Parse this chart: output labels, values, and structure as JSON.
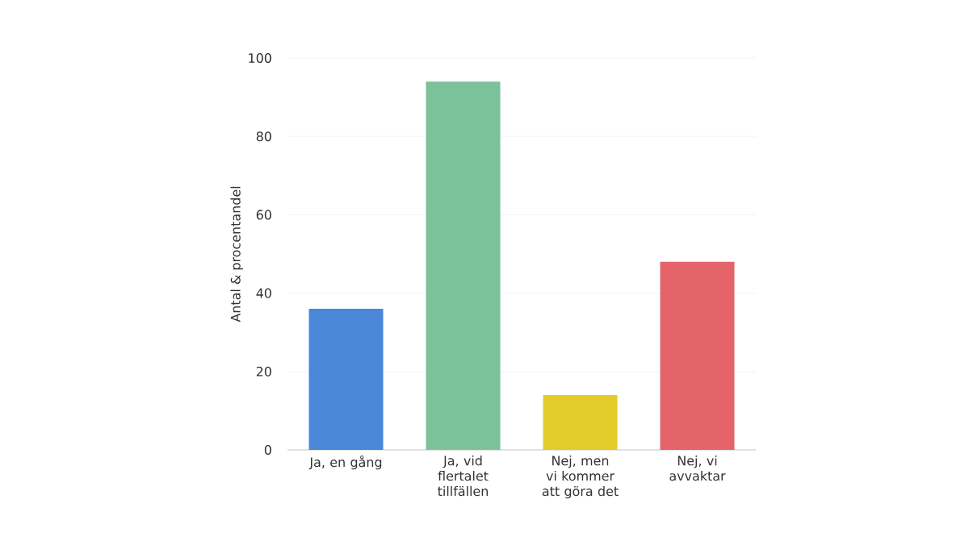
{
  "chart_data": {
    "type": "bar",
    "ylabel": "Antal & procentandel",
    "categories": [
      "Ja, en gång",
      "Ja, vid flertalet tillfällen",
      "Nej, men vi kommer att göra det",
      "Nej, vi avvaktar"
    ],
    "values": [
      36,
      94,
      14,
      48
    ],
    "colors": [
      "#4a87d9",
      "#7bc29a",
      "#e3cb2a",
      "#e4646a"
    ],
    "ylim": [
      0,
      100
    ],
    "yticks": [
      0,
      20,
      40,
      60,
      80,
      100
    ],
    "grid": "y"
  }
}
